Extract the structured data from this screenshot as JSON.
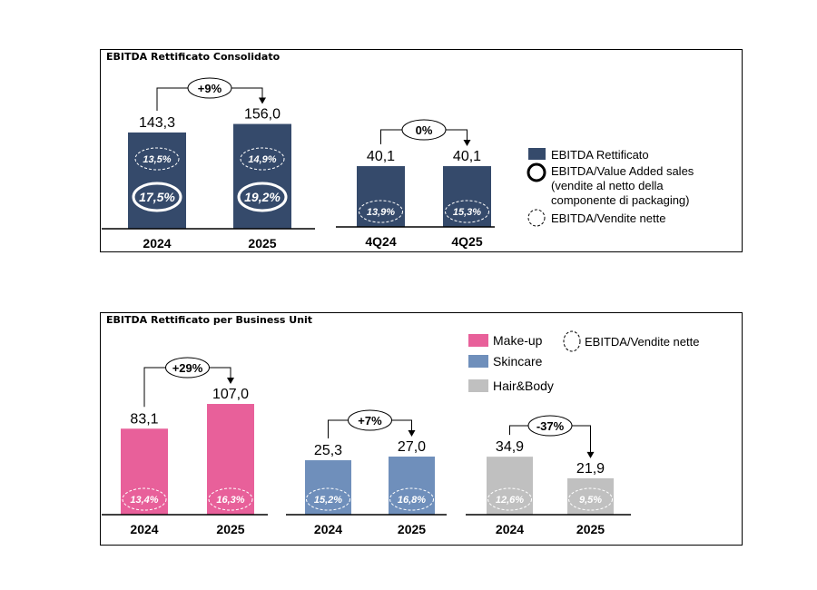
{
  "colors": {
    "navy": "#354a6b",
    "makeup": "#e8609a",
    "skincare": "#6f8fbb",
    "hairbody": "#c0c0c0"
  },
  "chart_data": [
    {
      "type": "bar",
      "title": "EBITDA Rettificato Consolidato",
      "groups": [
        {
          "categories": [
            "2024",
            "2025"
          ],
          "values": [
            "143,3",
            "156,0"
          ],
          "numeric": [
            143.3,
            156.0
          ],
          "ebitda_net_sales": [
            "13,5%",
            "14,9%"
          ],
          "ebitda_value_added": [
            "17,5%",
            "19,2%"
          ],
          "change": "+9%"
        },
        {
          "categories": [
            "4Q24",
            "4Q25"
          ],
          "values": [
            "40,1",
            "40,1"
          ],
          "numeric": [
            40.1,
            40.1
          ],
          "ebitda_net_sales": [
            "13,9%",
            "15,3%"
          ],
          "change": "0%"
        }
      ],
      "legend": [
        {
          "label": "EBITDA Rettificato",
          "marker": "square"
        },
        {
          "label": [
            "EBITDA/Value Added sales",
            "(vendite al netto della",
            "componente di packaging)"
          ],
          "marker": "solid-circle"
        },
        {
          "label": "EBITDA/Vendite nette",
          "marker": "dashed-circle"
        }
      ]
    },
    {
      "type": "bar",
      "title": "EBITDA Rettificato per Business Unit",
      "groups": [
        {
          "name": "Make-up",
          "categories": [
            "2024",
            "2025"
          ],
          "values": [
            "83,1",
            "107,0"
          ],
          "numeric": [
            83.1,
            107.0
          ],
          "ebitda_net_sales": [
            "13,4%",
            "16,3%"
          ],
          "change": "+29%"
        },
        {
          "name": "Skincare",
          "categories": [
            "2024",
            "2025"
          ],
          "values": [
            "25,3",
            "27,0"
          ],
          "numeric": [
            25.3,
            27.0
          ],
          "ebitda_net_sales": [
            "15,2%",
            "16,8%"
          ],
          "change": "+7%"
        },
        {
          "name": "Hair&Body",
          "categories": [
            "2024",
            "2025"
          ],
          "values": [
            "34,9",
            "21,9"
          ],
          "numeric": [
            34.9,
            21.9
          ],
          "ebitda_net_sales": [
            "12,6%",
            "9,5%"
          ],
          "change": "-37%"
        }
      ],
      "legend": [
        {
          "label": "Make-up",
          "marker": "square"
        },
        {
          "label": "Skincare",
          "marker": "square"
        },
        {
          "label": "Hair&Body",
          "marker": "square"
        },
        {
          "label": "EBITDA/Vendite nette",
          "marker": "dashed-circle"
        }
      ]
    }
  ]
}
